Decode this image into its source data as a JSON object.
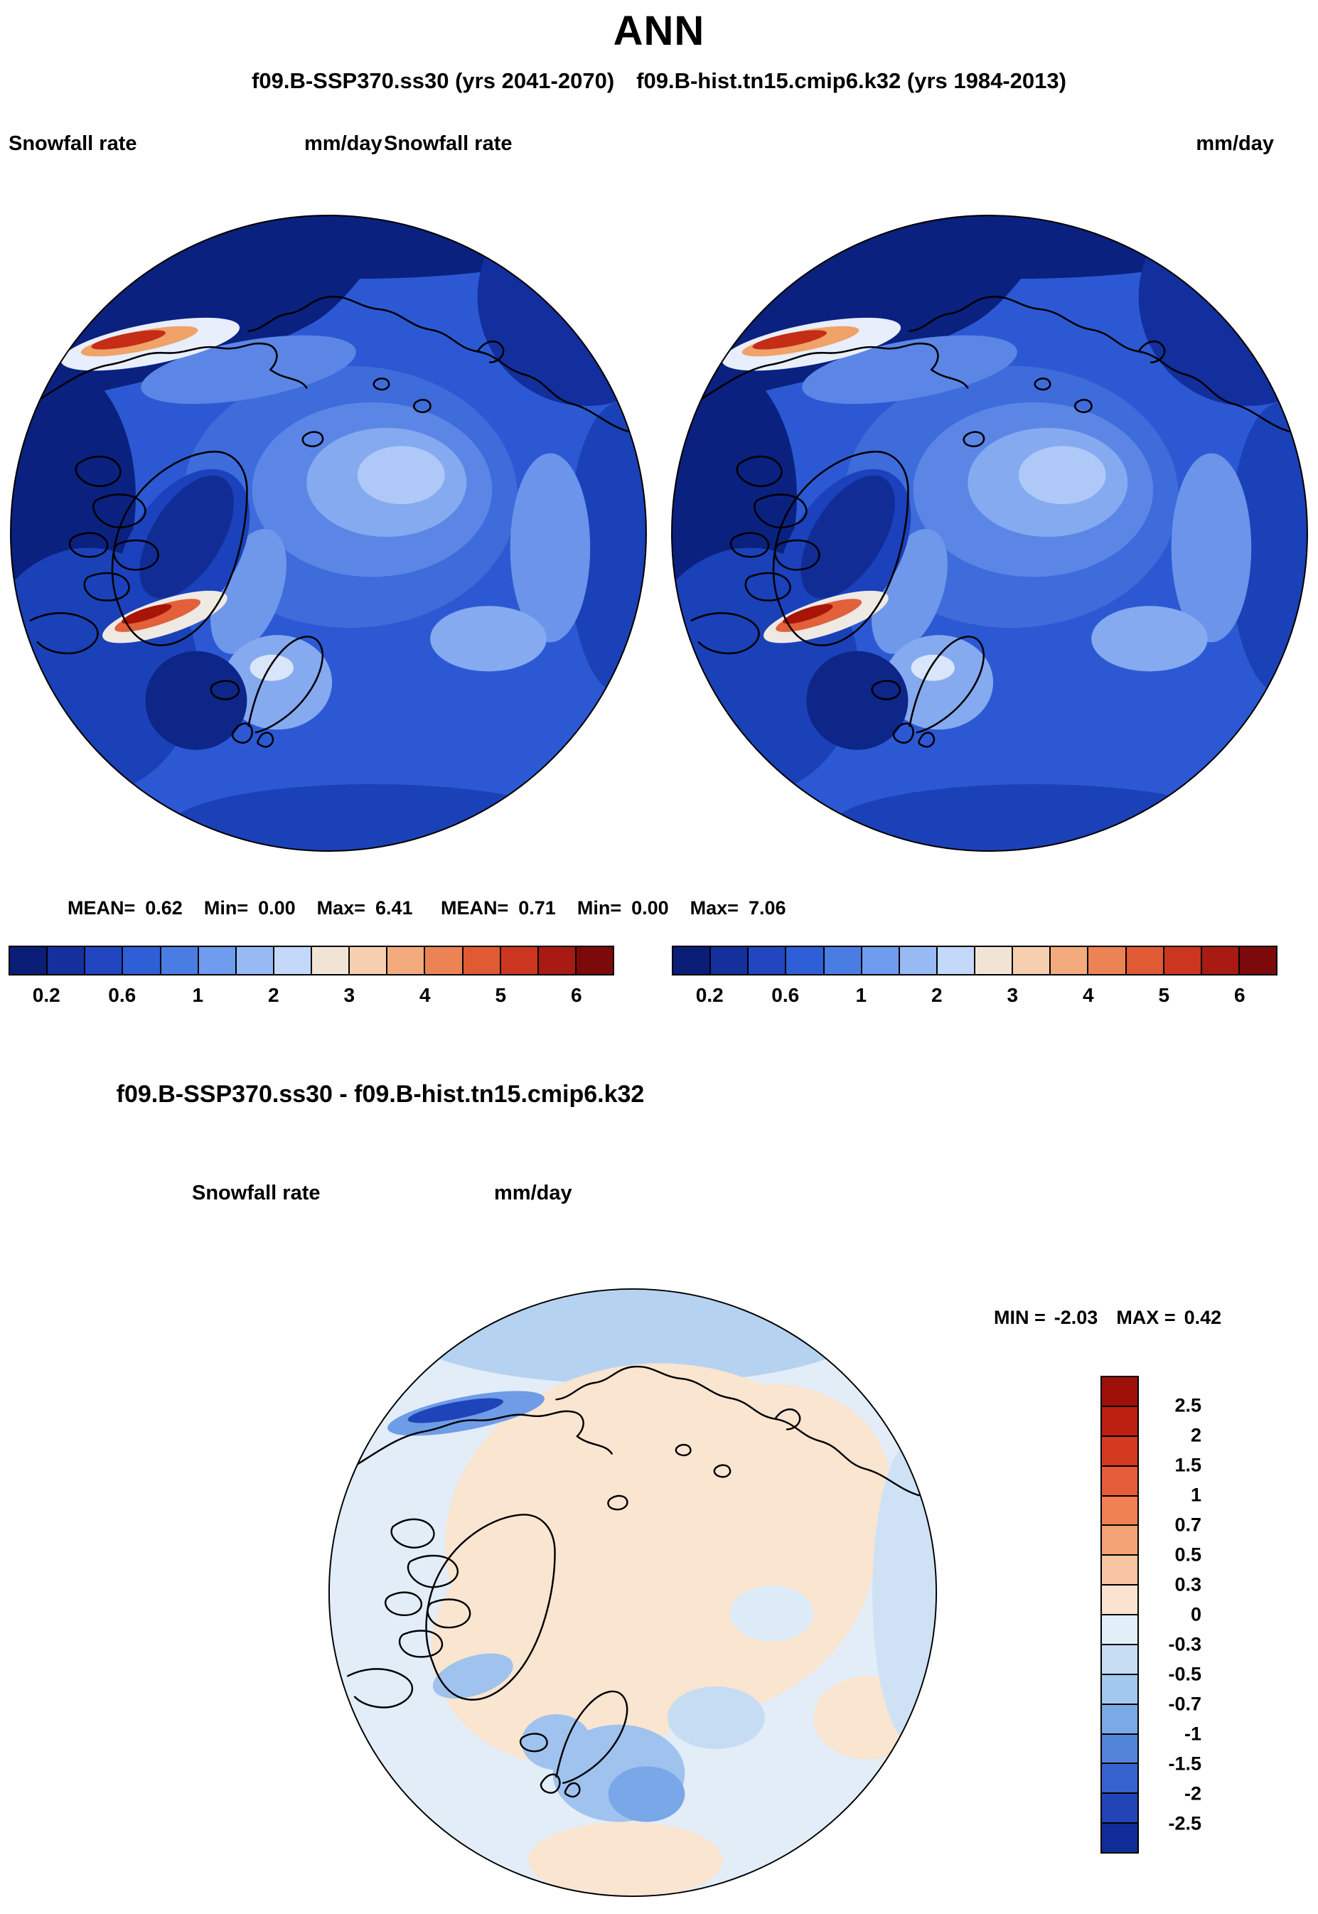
{
  "title": "ANN",
  "subtitle": "f09.B-SSP370.ss30 (yrs 2041-2070) f09.B-hist.tn15.cmip6.k32 (yrs 1984-2013)",
  "panels": [
    {
      "field": "Snowfall rate",
      "units": "mm/day",
      "mean_label": "MEAN=",
      "mean": "0.62",
      "min_label": "Min=",
      "min": "0.00",
      "max_label": "Max=",
      "max": "6.41"
    },
    {
      "field": "Snowfall rate",
      "units": "mm/day",
      "mean_label": "MEAN=",
      "mean": "0.71",
      "min_label": "Min=",
      "min": "0.00",
      "max_label": "Max=",
      "max": "7.06"
    }
  ],
  "snow_colorbar": {
    "ticks": [
      "0.2",
      "0.6",
      "1",
      "2",
      "3",
      "4",
      "5",
      "6"
    ],
    "colors": [
      "#0a1e78",
      "#14309c",
      "#2146c0",
      "#2f5fd6",
      "#4a7de4",
      "#6f9cee",
      "#97baf5",
      "#c3d8fa",
      "#f2e4d4",
      "#f7cfae",
      "#f3ab7e",
      "#ec8354",
      "#e05a34",
      "#cc3620",
      "#a81a12",
      "#7d0a0a"
    ]
  },
  "diff": {
    "title": "f09.B-SSP370.ss30 - f09.B-hist.tn15.cmip6.k32",
    "field": "Snowfall rate",
    "units": "mm/day",
    "min_label": "MIN =",
    "min": "-2.03",
    "max_label": "MAX =",
    "max": "0.42",
    "colorbar": {
      "labels": [
        "2.5",
        "2",
        "1.5",
        "1",
        "0.7",
        "0.5",
        "0.3",
        "0",
        "-0.3",
        "-0.5",
        "-0.7",
        "-1",
        "-1.5",
        "-2",
        "-2.5"
      ],
      "colors": [
        "#9e1008",
        "#bb2010",
        "#d43a20",
        "#e55c38",
        "#ef8152",
        "#f3a376",
        "#f7c5a2",
        "#fbe3cf",
        "#e2eef8",
        "#c6dcf3",
        "#a3c8ee",
        "#79a9e6",
        "#5285da",
        "#3763cf",
        "#2145b6",
        "#102c96"
      ]
    }
  },
  "chart_data": [
    {
      "type": "heatmap",
      "subtype": "north-polar-stereographic-map",
      "title": "f09.B-SSP370.ss30 (yrs 2041-2070)",
      "variable": "Snowfall rate",
      "units": "mm/day",
      "stats": {
        "mean": 0.62,
        "min": 0.0,
        "max": 6.41
      },
      "colorbar_ticks": [
        0.2,
        0.6,
        1,
        2,
        3,
        4,
        5,
        6
      ],
      "legend_position": "bottom",
      "notes": "Arctic cap map. Lowest rates (<0.2 mm/day, dark navy) over North Pacific and lower-latitude oceans; ~0.6-1 mm/day (medium blue) over central Arctic Ocean with paler 1-2 mm/day patches; maxima >6 mm/day (white/orange/dark red streaks) along SE Alaska coastal ranges and SE Greenland coast; lighter values along Scandinavia."
    },
    {
      "type": "heatmap",
      "subtype": "north-polar-stereographic-map",
      "title": "f09.B-hist.tn15.cmip6.k32 (yrs 1984-2013)",
      "variable": "Snowfall rate",
      "units": "mm/day",
      "stats": {
        "mean": 0.71,
        "min": 0.0,
        "max": 7.06
      },
      "colorbar_ticks": [
        0.2,
        0.6,
        1,
        2,
        3,
        4,
        5,
        6
      ],
      "legend_position": "bottom",
      "notes": "Same spatial pattern as SSP370 panel with slightly higher snowfall overall; identical color scale."
    },
    {
      "type": "heatmap",
      "subtype": "north-polar-stereographic-map",
      "title": "f09.B-SSP370.ss30 - f09.B-hist.tn15.cmip6.k32",
      "variable": "Snowfall rate difference",
      "units": "mm/day",
      "stats": {
        "min": -2.03,
        "max": 0.42
      },
      "colorbar_ticks": [
        2.5,
        2,
        1.5,
        1,
        0.7,
        0.5,
        0.3,
        0,
        -0.3,
        -0.5,
        -0.7,
        -1,
        -1.5,
        -2,
        -2.5
      ],
      "legend_position": "right",
      "notes": "Weak positive change (0 to 0.3 mm/day, pale peach) over central Arctic and most land; negative change (-0.3 to -2 mm/day, blues) over subpolar oceans, Nordic Seas, near Iceland/Scandinavia and along the Alaska coast where a strong negative streak appears."
    }
  ]
}
